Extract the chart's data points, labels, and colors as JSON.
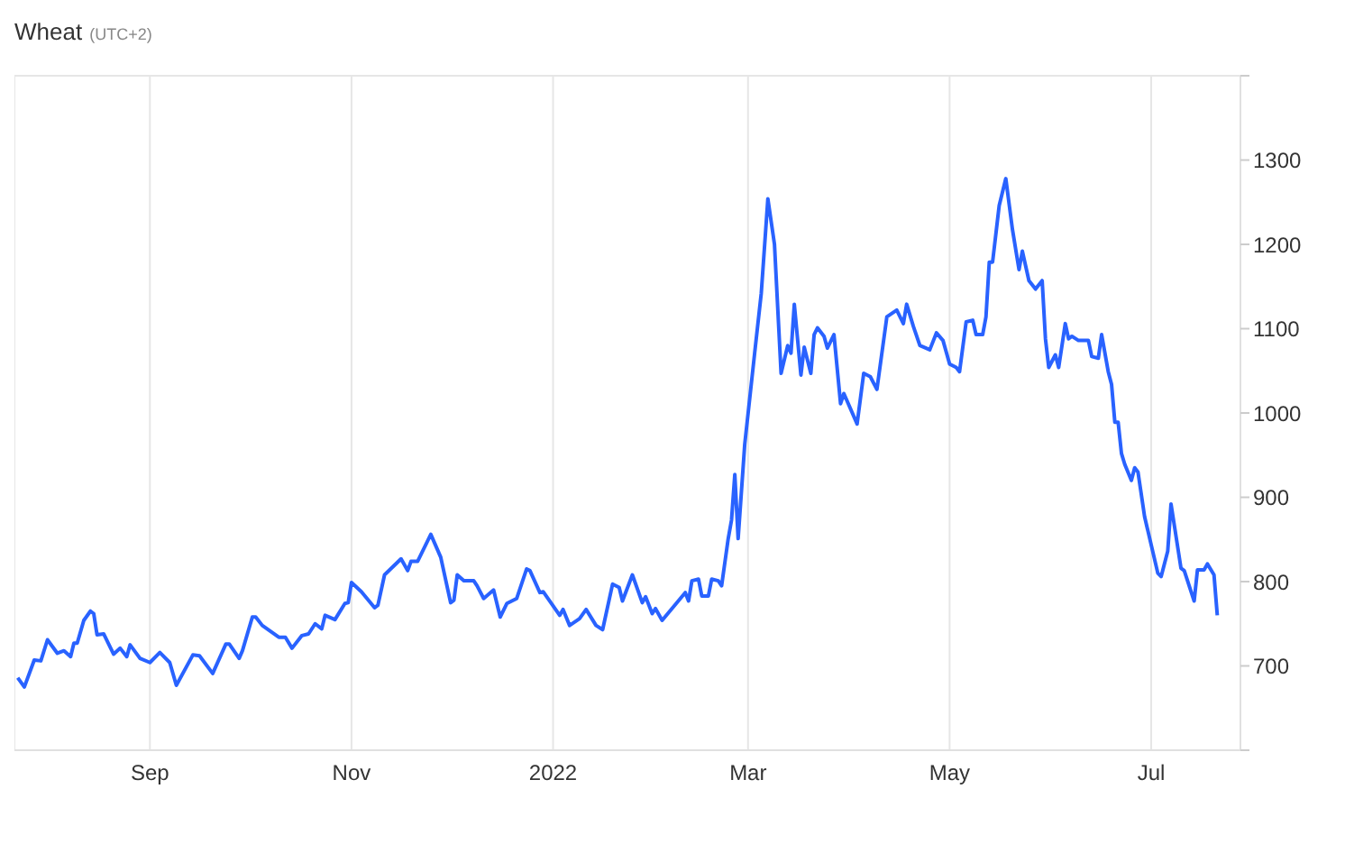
{
  "chart_data": {
    "type": "line",
    "title": "Wheat",
    "subtitle": "(UTC+2)",
    "xlim": [
      "2021-07-22",
      "2022-07-28"
    ],
    "xticks": [
      {
        "value": "2021-09-01",
        "label": "Sep"
      },
      {
        "value": "2021-11-01",
        "label": "Nov"
      },
      {
        "value": "2022-01-01",
        "label": "2022"
      },
      {
        "value": "2022-03-01",
        "label": "Mar"
      },
      {
        "value": "2022-05-01",
        "label": "May"
      },
      {
        "value": "2022-07-01",
        "label": "Jul"
      }
    ],
    "ylim": [
      600,
      1400
    ],
    "yticks": [
      {
        "value": 600,
        "label": null
      },
      700,
      800,
      900,
      1000,
      1100,
      1200,
      1300,
      {
        "value": 1400,
        "label": null
      }
    ],
    "grid": true,
    "legend": false,
    "marker": "none",
    "line_style": "solid",
    "series": [
      {
        "color": "#2962ff",
        "x": [
          "2021-07-23",
          "2021-07-25",
          "2021-07-28",
          "2021-07-30",
          "2021-08-01",
          "2021-08-04",
          "2021-08-06",
          "2021-08-08",
          "2021-08-09",
          "2021-08-10",
          "2021-08-12",
          "2021-08-14",
          "2021-08-15",
          "2021-08-16",
          "2021-08-18",
          "2021-08-21",
          "2021-08-23",
          "2021-08-25",
          "2021-08-26",
          "2021-08-29",
          "2021-09-01",
          "2021-09-04",
          "2021-09-07",
          "2021-09-09",
          "2021-09-14",
          "2021-09-16",
          "2021-09-20",
          "2021-09-24",
          "2021-09-25",
          "2021-09-28",
          "2021-09-29",
          "2021-10-02",
          "2021-10-03",
          "2021-10-05",
          "2021-10-10",
          "2021-10-12",
          "2021-10-14",
          "2021-10-17",
          "2021-10-19",
          "2021-10-21",
          "2021-10-23",
          "2021-10-24",
          "2021-10-27",
          "2021-10-30",
          "2021-10-31",
          "2021-11-01",
          "2021-11-04",
          "2021-11-08",
          "2021-11-09",
          "2021-11-11",
          "2021-11-16",
          "2021-11-18",
          "2021-11-19",
          "2021-11-21",
          "2021-11-25",
          "2021-11-28",
          "2021-12-01",
          "2021-12-02",
          "2021-12-03",
          "2021-12-05",
          "2021-12-06",
          "2021-12-08",
          "2021-12-09",
          "2021-12-11",
          "2021-12-14",
          "2021-12-16",
          "2021-12-18",
          "2021-12-21",
          "2021-12-24",
          "2021-12-25",
          "2021-12-28",
          "2021-12-29",
          "2022-01-03",
          "2022-01-04",
          "2022-01-06",
          "2022-01-09",
          "2022-01-11",
          "2022-01-14",
          "2022-01-16",
          "2022-01-19",
          "2022-01-21",
          "2022-01-22",
          "2022-01-25",
          "2022-01-28",
          "2022-01-29",
          "2022-01-31",
          "2022-02-01",
          "2022-02-03",
          "2022-02-10",
          "2022-02-11",
          "2022-02-12",
          "2022-02-14",
          "2022-02-15",
          "2022-02-17",
          "2022-02-18",
          "2022-02-20",
          "2022-02-21",
          "2022-02-23",
          "2022-02-24",
          "2022-02-25",
          "2022-02-26",
          "2022-02-28",
          "2022-03-03",
          "2022-03-05",
          "2022-03-07",
          "2022-03-09",
          "2022-03-11",
          "2022-03-13",
          "2022-03-14",
          "2022-03-15",
          "2022-03-17",
          "2022-03-18",
          "2022-03-20",
          "2022-03-21",
          "2022-03-22",
          "2022-03-24",
          "2022-03-25",
          "2022-03-27",
          "2022-03-29",
          "2022-03-30",
          "2022-04-03",
          "2022-04-05",
          "2022-04-07",
          "2022-04-09",
          "2022-04-12",
          "2022-04-15",
          "2022-04-17",
          "2022-04-18",
          "2022-04-20",
          "2022-04-22",
          "2022-04-25",
          "2022-04-27",
          "2022-04-29",
          "2022-05-01",
          "2022-05-03",
          "2022-05-04",
          "2022-05-06",
          "2022-05-08",
          "2022-05-09",
          "2022-05-11",
          "2022-05-12",
          "2022-05-13",
          "2022-05-14",
          "2022-05-16",
          "2022-05-18",
          "2022-05-20",
          "2022-05-22",
          "2022-05-23",
          "2022-05-25",
          "2022-05-27",
          "2022-05-29",
          "2022-05-30",
          "2022-05-31",
          "2022-06-02",
          "2022-06-03",
          "2022-06-05",
          "2022-06-06",
          "2022-06-07",
          "2022-06-09",
          "2022-06-12",
          "2022-06-13",
          "2022-06-15",
          "2022-06-16",
          "2022-06-18",
          "2022-06-19",
          "2022-06-20",
          "2022-06-21",
          "2022-06-22",
          "2022-06-23",
          "2022-06-25",
          "2022-06-26",
          "2022-06-27",
          "2022-06-29",
          "2022-07-03",
          "2022-07-04",
          "2022-07-06",
          "2022-07-07",
          "2022-07-10",
          "2022-07-11",
          "2022-07-14",
          "2022-07-15",
          "2022-07-17",
          "2022-07-18",
          "2022-07-20",
          "2022-07-21"
        ],
        "values": [
          686,
          675,
          707,
          706,
          731,
          715,
          718,
          711,
          727,
          727,
          754,
          765,
          762,
          737,
          738,
          714,
          721,
          711,
          725,
          709,
          704,
          716,
          704,
          677,
          713,
          712,
          691,
          726,
          726,
          709,
          718,
          758,
          758,
          748,
          734,
          734,
          721,
          736,
          738,
          750,
          744,
          760,
          755,
          774,
          775,
          799,
          788,
          769,
          772,
          808,
          827,
          813,
          824,
          824,
          856,
          829,
          775,
          778,
          808,
          801,
          801,
          801,
          795,
          780,
          790,
          758,
          774,
          780,
          815,
          813,
          787,
          788,
          760,
          767,
          748,
          756,
          767,
          748,
          743,
          797,
          793,
          777,
          808,
          775,
          782,
          762,
          768,
          754,
          787,
          777,
          801,
          803,
          783,
          783,
          803,
          801,
          795,
          851,
          873,
          927,
          851,
          963,
          1071,
          1142,
          1254,
          1200,
          1047,
          1080,
          1071,
          1129,
          1045,
          1078,
          1047,
          1093,
          1101,
          1091,
          1077,
          1093,
          1011,
          1023,
          987,
          1047,
          1043,
          1028,
          1114,
          1122,
          1106,
          1129,
          1103,
          1080,
          1075,
          1095,
          1086,
          1058,
          1054,
          1049,
          1108,
          1110,
          1093,
          1093,
          1114,
          1179,
          1179,
          1246,
          1278,
          1218,
          1170,
          1192,
          1157,
          1147,
          1157,
          1088,
          1054,
          1069,
          1054,
          1106,
          1088,
          1091,
          1086,
          1086,
          1067,
          1065,
          1093,
          1049,
          1034,
          989,
          989,
          952,
          939,
          920,
          935,
          930,
          877,
          810,
          806,
          836,
          892,
          816,
          813,
          777,
          814,
          814,
          821,
          808,
          760
        ]
      }
    ]
  }
}
